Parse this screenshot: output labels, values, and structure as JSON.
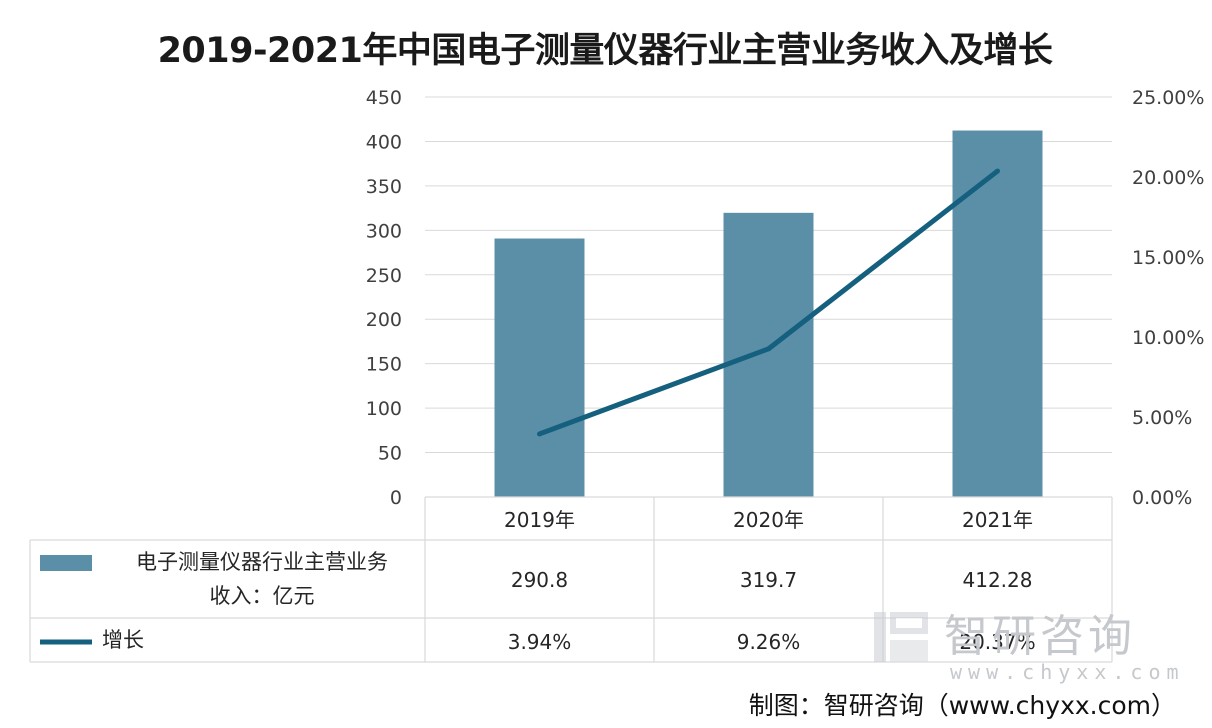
{
  "chart_data": {
    "type": "bar+line",
    "title": "2019-2021年中国电子测量仪器行业主营业务收入及增长",
    "categories": [
      "2019年",
      "2020年",
      "2021年"
    ],
    "series": [
      {
        "name": "电子测量仪器行业主营业务收入：亿元",
        "type": "bar",
        "axis": "left",
        "color": "#5b8fa8",
        "values": [
          290.8,
          319.7,
          412.28
        ],
        "table_labels": [
          "290.8",
          "319.7",
          "412.28"
        ]
      },
      {
        "name": "增长",
        "type": "line",
        "axis": "right",
        "color": "#15607f",
        "values": [
          3.94,
          9.26,
          20.37
        ],
        "table_labels": [
          "3.94%",
          "9.26%",
          "20.37%"
        ]
      }
    ],
    "y_left": {
      "min": 0,
      "max": 450,
      "ticks": [
        "0",
        "50",
        "100",
        "150",
        "200",
        "250",
        "300",
        "350",
        "400",
        "450"
      ]
    },
    "y_right": {
      "min": 0,
      "max": 25,
      "ticks": [
        "0.00%",
        "5.00%",
        "10.00%",
        "15.00%",
        "20.00%",
        "25.00%"
      ]
    },
    "grid": true,
    "legend": "data-table"
  },
  "table": {
    "row1_label_line1": "电子测量仪器行业主营业务",
    "row1_label_line2": "收入：亿元",
    "row2_label": "增长"
  },
  "watermark": {
    "name": "智研咨询",
    "url": "www.chyxx.com"
  },
  "source_note": "制图：智研咨询（www.chyxx.com）"
}
